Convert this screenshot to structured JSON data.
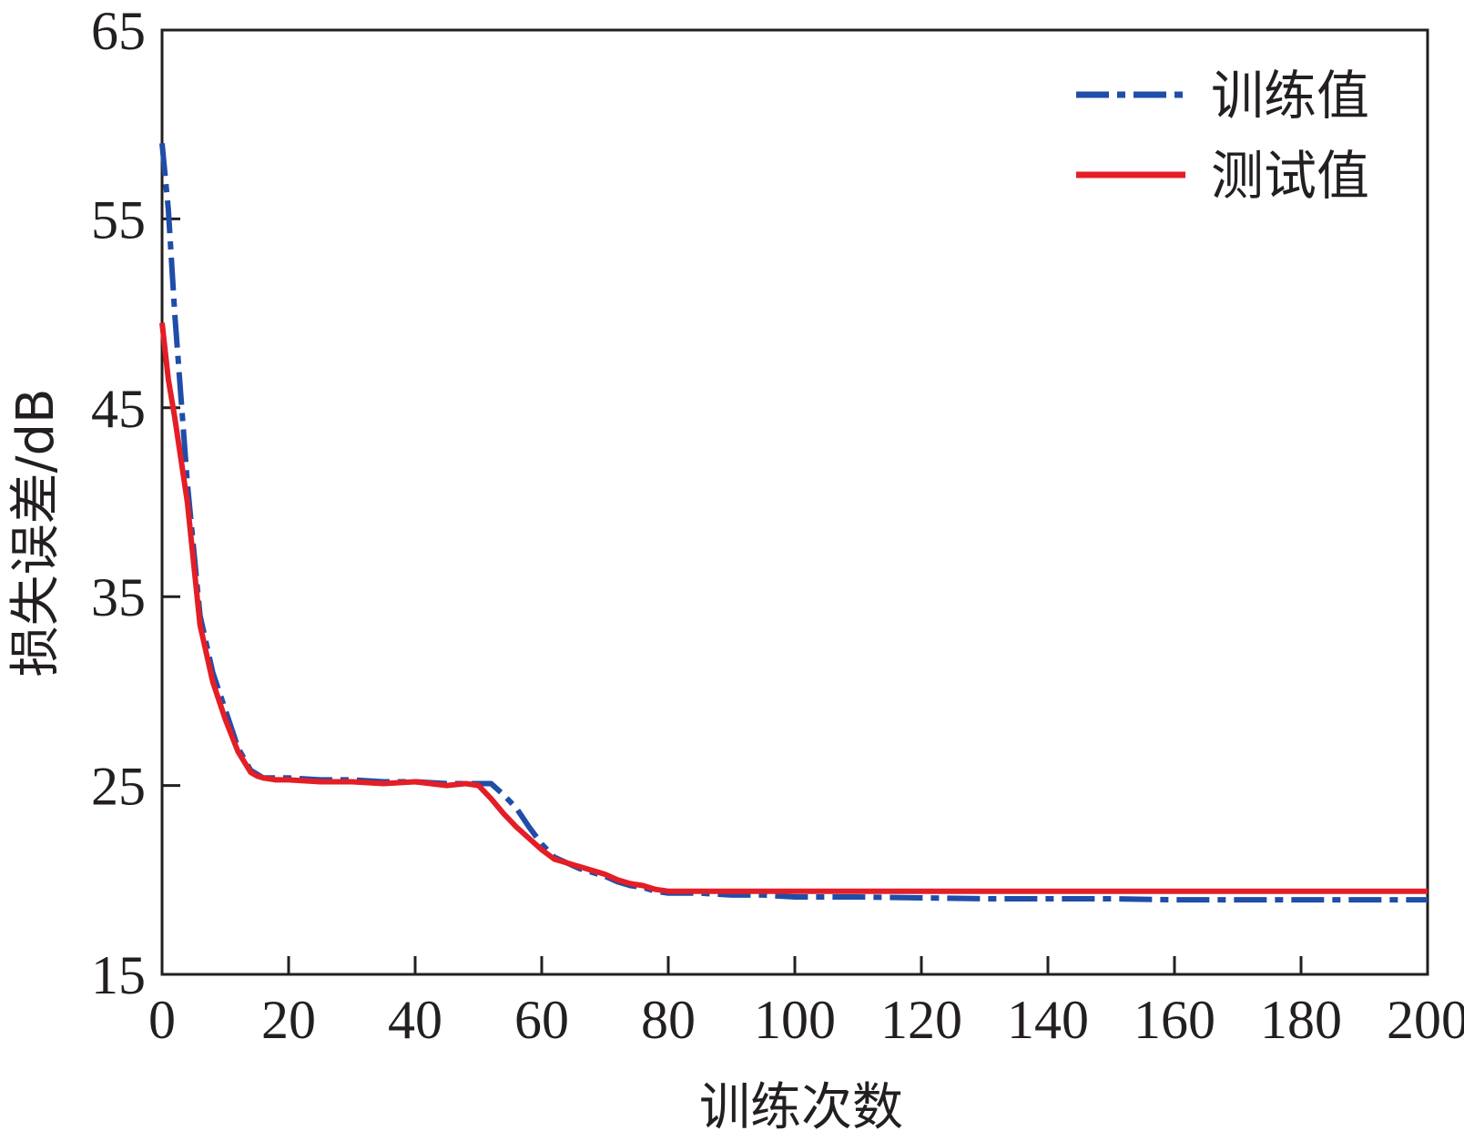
{
  "chart_data": {
    "type": "line",
    "title": "",
    "xlabel": "训练次数",
    "ylabel": "损失误差/dB",
    "xlim": [
      0,
      200
    ],
    "ylim": [
      15,
      65
    ],
    "xticks": [
      0,
      20,
      40,
      60,
      80,
      100,
      120,
      140,
      160,
      180,
      200
    ],
    "yticks": [
      15,
      25,
      35,
      45,
      55,
      65
    ],
    "grid": false,
    "legend_position": "top-right",
    "series": [
      {
        "name": "训练值",
        "color": "#1f4ea8",
        "style": "dash-dot",
        "x": [
          0,
          1,
          2,
          4,
          6,
          8,
          10,
          12,
          14,
          16,
          18,
          20,
          25,
          30,
          35,
          40,
          45,
          50,
          52,
          54,
          56,
          58,
          60,
          62,
          64,
          66,
          68,
          70,
          72,
          74,
          76,
          78,
          80,
          85,
          90,
          95,
          100,
          110,
          120,
          130,
          140,
          150,
          160,
          170,
          180,
          190,
          200
        ],
        "y": [
          59,
          55.5,
          50,
          41,
          34,
          31,
          29,
          27,
          25.8,
          25.4,
          25.4,
          25.4,
          25.3,
          25.3,
          25.2,
          25.2,
          25.1,
          25.1,
          25.1,
          24.5,
          23.8,
          22.8,
          21.9,
          21.2,
          20.9,
          20.6,
          20.4,
          20.2,
          19.9,
          19.7,
          19.6,
          19.4,
          19.3,
          19.3,
          19.2,
          19.2,
          19.1,
          19.1,
          19.05,
          19.0,
          19.0,
          19.0,
          18.95,
          18.95,
          18.95,
          18.95,
          18.95
        ]
      },
      {
        "name": "测试值",
        "color": "#e41e26",
        "style": "solid",
        "x": [
          0,
          1,
          2,
          4,
          6,
          8,
          10,
          12,
          14,
          15,
          16,
          18,
          20,
          25,
          30,
          35,
          40,
          45,
          48,
          50,
          52,
          54,
          56,
          58,
          60,
          62,
          64,
          66,
          68,
          70,
          72,
          74,
          76,
          78,
          80,
          85,
          90,
          100,
          120,
          140,
          160,
          180,
          200
        ],
        "y": [
          49.5,
          46.5,
          44.5,
          40,
          33.5,
          30.5,
          28.5,
          26.8,
          25.7,
          25.5,
          25.4,
          25.3,
          25.3,
          25.2,
          25.2,
          25.1,
          25.2,
          25.0,
          25.1,
          25.0,
          24.3,
          23.5,
          22.8,
          22.2,
          21.6,
          21.1,
          20.9,
          20.7,
          20.5,
          20.3,
          20.0,
          19.8,
          19.7,
          19.5,
          19.4,
          19.4,
          19.4,
          19.4,
          19.4,
          19.4,
          19.4,
          19.4,
          19.4
        ]
      }
    ]
  }
}
